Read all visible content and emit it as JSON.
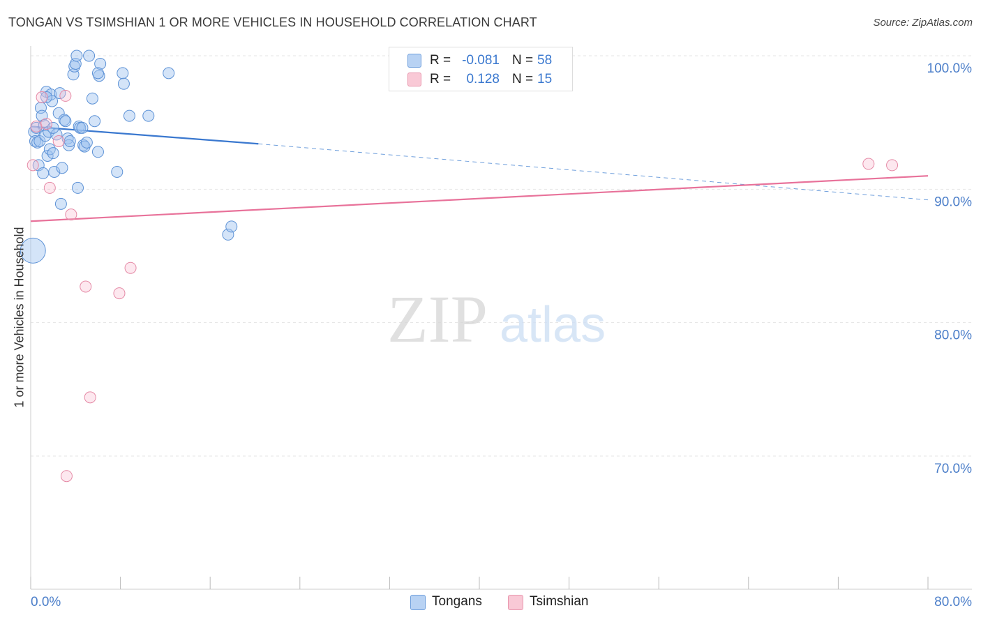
{
  "header": {
    "title": "TONGAN VS TSIMSHIAN 1 OR MORE VEHICLES IN HOUSEHOLD CORRELATION CHART",
    "source": "Source: ZipAtlas.com"
  },
  "watermark": {
    "zip": "ZIP",
    "atlas": "atlas"
  },
  "legend": {
    "series": [
      {
        "name": "Tongans",
        "r_label": "R =",
        "r_value": "-0.081",
        "n_label": "N =",
        "n_value": "58",
        "fill": "#b8d2f3",
        "stroke": "#6f9fdc"
      },
      {
        "name": "Tsimshian",
        "r_label": "R =",
        "r_value": "0.128",
        "n_label": "N =",
        "n_value": "15",
        "fill": "#f9c9d6",
        "stroke": "#e896ad"
      }
    ]
  },
  "chart_data": {
    "type": "scatter",
    "title": "TONGAN VS TSIMSHIAN 1 OR MORE VEHICLES IN HOUSEHOLD CORRELATION CHART",
    "ylabel": "1 or more Vehicles in Household",
    "xlabel": "",
    "xlim": [
      0,
      80
    ],
    "ylim": [
      60,
      101.5
    ],
    "x_ticks": [
      0,
      8,
      16,
      24,
      32,
      40,
      48,
      56,
      64,
      72,
      80
    ],
    "x_tick_labels": {
      "0": "0.0%",
      "80": "80.0%"
    },
    "y_ticks": [
      70,
      80,
      90,
      100
    ],
    "y_tick_labels": [
      "70.0%",
      "80.0%",
      "90.0%",
      "100.0%"
    ],
    "grid": true,
    "colors": {
      "tongans": "#3a78cf",
      "tsimshian": "#e8729a",
      "axis_label": "#4b7ec9"
    },
    "series": [
      {
        "name": "Tongans",
        "color": "#3a78cf",
        "points": [
          [
            0.2,
            85.4
          ],
          [
            0.3,
            94.3
          ],
          [
            0.4,
            93.6
          ],
          [
            0.5,
            94.6
          ],
          [
            0.6,
            93.5
          ],
          [
            0.7,
            91.8
          ],
          [
            0.8,
            93.6
          ],
          [
            0.9,
            96.1
          ],
          [
            1.0,
            95.5
          ],
          [
            1.1,
            91.2
          ],
          [
            1.2,
            94.8
          ],
          [
            1.3,
            94.0
          ],
          [
            1.4,
            97.3
          ],
          [
            1.5,
            92.5
          ],
          [
            1.6,
            94.3
          ],
          [
            1.7,
            93.0
          ],
          [
            1.8,
            97.1
          ],
          [
            1.9,
            96.6
          ],
          [
            2.0,
            92.7
          ],
          [
            2.1,
            91.3
          ],
          [
            2.3,
            94.1
          ],
          [
            2.5,
            95.7
          ],
          [
            2.6,
            97.2
          ],
          [
            2.7,
            88.9
          ],
          [
            2.8,
            91.6
          ],
          [
            3.0,
            95.2
          ],
          [
            3.1,
            95.1
          ],
          [
            3.3,
            93.8
          ],
          [
            3.4,
            93.3
          ],
          [
            3.5,
            93.6
          ],
          [
            3.8,
            98.6
          ],
          [
            3.9,
            99.2
          ],
          [
            4.0,
            99.4
          ],
          [
            4.1,
            100.0
          ],
          [
            4.2,
            90.1
          ],
          [
            4.3,
            94.7
          ],
          [
            4.4,
            94.6
          ],
          [
            4.6,
            94.6
          ],
          [
            4.7,
            93.3
          ],
          [
            4.8,
            93.2
          ],
          [
            5.0,
            93.5
          ],
          [
            5.2,
            100.0
          ],
          [
            5.5,
            96.8
          ],
          [
            5.7,
            95.1
          ],
          [
            6.0,
            92.8
          ],
          [
            6.1,
            98.5
          ],
          [
            6.2,
            99.4
          ],
          [
            7.7,
            91.3
          ],
          [
            8.2,
            98.7
          ],
          [
            8.3,
            97.9
          ],
          [
            8.8,
            95.5
          ],
          [
            10.5,
            95.5
          ],
          [
            12.3,
            98.7
          ],
          [
            17.6,
            86.6
          ],
          [
            17.9,
            87.2
          ],
          [
            2.0,
            94.6
          ],
          [
            1.4,
            96.9
          ],
          [
            6.0,
            98.7
          ]
        ],
        "radii": {
          "0": 18
        }
      },
      {
        "name": "Tsimshian",
        "color": "#e8729a",
        "points": [
          [
            0.2,
            91.8
          ],
          [
            0.5,
            94.7
          ],
          [
            1.0,
            96.9
          ],
          [
            1.4,
            94.9
          ],
          [
            1.7,
            90.1
          ],
          [
            2.5,
            93.6
          ],
          [
            3.1,
            97.0
          ],
          [
            3.2,
            68.5
          ],
          [
            3.6,
            88.1
          ],
          [
            4.9,
            82.7
          ],
          [
            5.3,
            74.4
          ],
          [
            7.9,
            82.2
          ],
          [
            8.9,
            84.1
          ],
          [
            74.7,
            91.9
          ],
          [
            76.8,
            91.8
          ]
        ]
      }
    ],
    "trendlines": [
      {
        "series": "Tongans",
        "x": [
          0,
          20.3
        ],
        "y": [
          94.7,
          93.4
        ],
        "dashed_to": [
          80,
          89.2
        ]
      },
      {
        "series": "Tsimshian",
        "x": [
          0,
          80
        ],
        "y": [
          87.6,
          91.0
        ]
      }
    ]
  }
}
